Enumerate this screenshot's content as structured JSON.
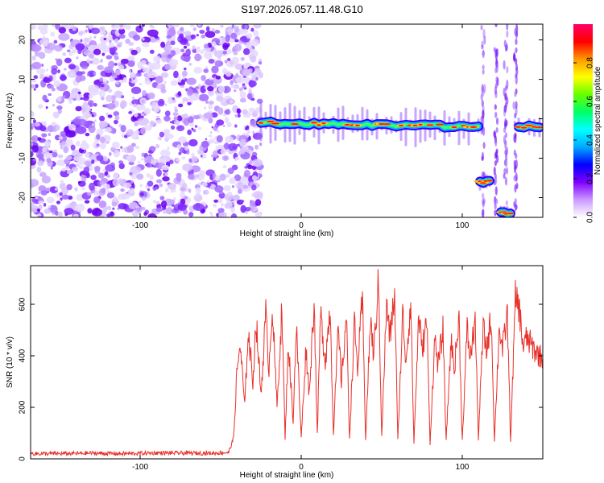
{
  "title": "S197.2026.057.11.48.G10",
  "chart_data": [
    {
      "type": "heatmap",
      "xlabel": "Height of straight line (km)",
      "ylabel": "Frequency (Hz)",
      "xlim": [
        -168,
        150
      ],
      "ylim": [
        -25,
        24
      ],
      "xticks": [
        -100,
        0,
        100
      ],
      "yticks": [
        -20,
        -10,
        0,
        10,
        20
      ],
      "colorbar": {
        "label": "Normalized spectral amplitude",
        "range": [
          0,
          1
        ],
        "ticks": [
          0.0,
          0.2,
          0.4,
          0.6,
          0.8
        ],
        "colors": [
          "#ffffff",
          "#cc99ff",
          "#7f00ff",
          "#0000ff",
          "#00aaff",
          "#00ffff",
          "#00ff66",
          "#66ff00",
          "#ffff00",
          "#ff9900",
          "#ff0000",
          "#ff0066"
        ]
      },
      "trace_segments": [
        {
          "x_start": -25,
          "x_end": 110,
          "freq_start": -1,
          "freq_end": -2
        },
        {
          "x_start": 111,
          "x_end": 117,
          "freq_start": -16,
          "freq_end": -16
        },
        {
          "x_start": 124,
          "x_end": 130,
          "freq_start": -24,
          "freq_end": -24
        },
        {
          "x_start": 135,
          "x_end": 148,
          "freq_start": -2,
          "freq_end": -2
        }
      ],
      "noise_region_x": [
        -168,
        -25
      ]
    },
    {
      "type": "line",
      "xlabel": "Height of straight line (km)",
      "ylabel": "SNR (10 * v/v)",
      "xlim": [
        -168,
        150
      ],
      "ylim": [
        0,
        750
      ],
      "xticks": [
        -100,
        0,
        100
      ],
      "yticks": [
        0,
        200,
        400,
        600
      ],
      "line_color": "#e8302a",
      "series": [
        {
          "name": "SNR",
          "x": [
            -168,
            -150,
            -130,
            -110,
            -90,
            -70,
            -55,
            -45,
            -42,
            -40,
            -38,
            -35,
            -33,
            -30,
            -28,
            -25,
            -22,
            -20,
            -18,
            -15,
            -12,
            -10,
            -8,
            -5,
            -3,
            0,
            3,
            5,
            8,
            10,
            12,
            15,
            18,
            20,
            23,
            25,
            28,
            30,
            33,
            35,
            38,
            40,
            43,
            45,
            48,
            50,
            53,
            55,
            58,
            60,
            63,
            65,
            68,
            70,
            73,
            75,
            78,
            80,
            83,
            85,
            88,
            90,
            93,
            95,
            98,
            100,
            103,
            105,
            108,
            110,
            113,
            115,
            118,
            120,
            123,
            125,
            128,
            130,
            133,
            135,
            138,
            140,
            145,
            150
          ],
          "values": [
            20,
            20,
            22,
            20,
            23,
            22,
            22,
            25,
            80,
            320,
            450,
            200,
            500,
            300,
            540,
            250,
            560,
            350,
            600,
            200,
            580,
            80,
            450,
            150,
            520,
            80,
            430,
            250,
            620,
            90,
            560,
            380,
            590,
            100,
            500,
            300,
            560,
            80,
            520,
            350,
            620,
            80,
            540,
            400,
            690,
            90,
            600,
            470,
            640,
            70,
            560,
            380,
            610,
            60,
            560,
            420,
            540,
            60,
            470,
            360,
            500,
            70,
            460,
            350,
            540,
            70,
            500,
            390,
            540,
            80,
            510,
            420,
            550,
            70,
            520,
            420,
            560,
            70,
            620,
            600,
            430,
            470,
            420,
            390
          ]
        }
      ]
    }
  ]
}
